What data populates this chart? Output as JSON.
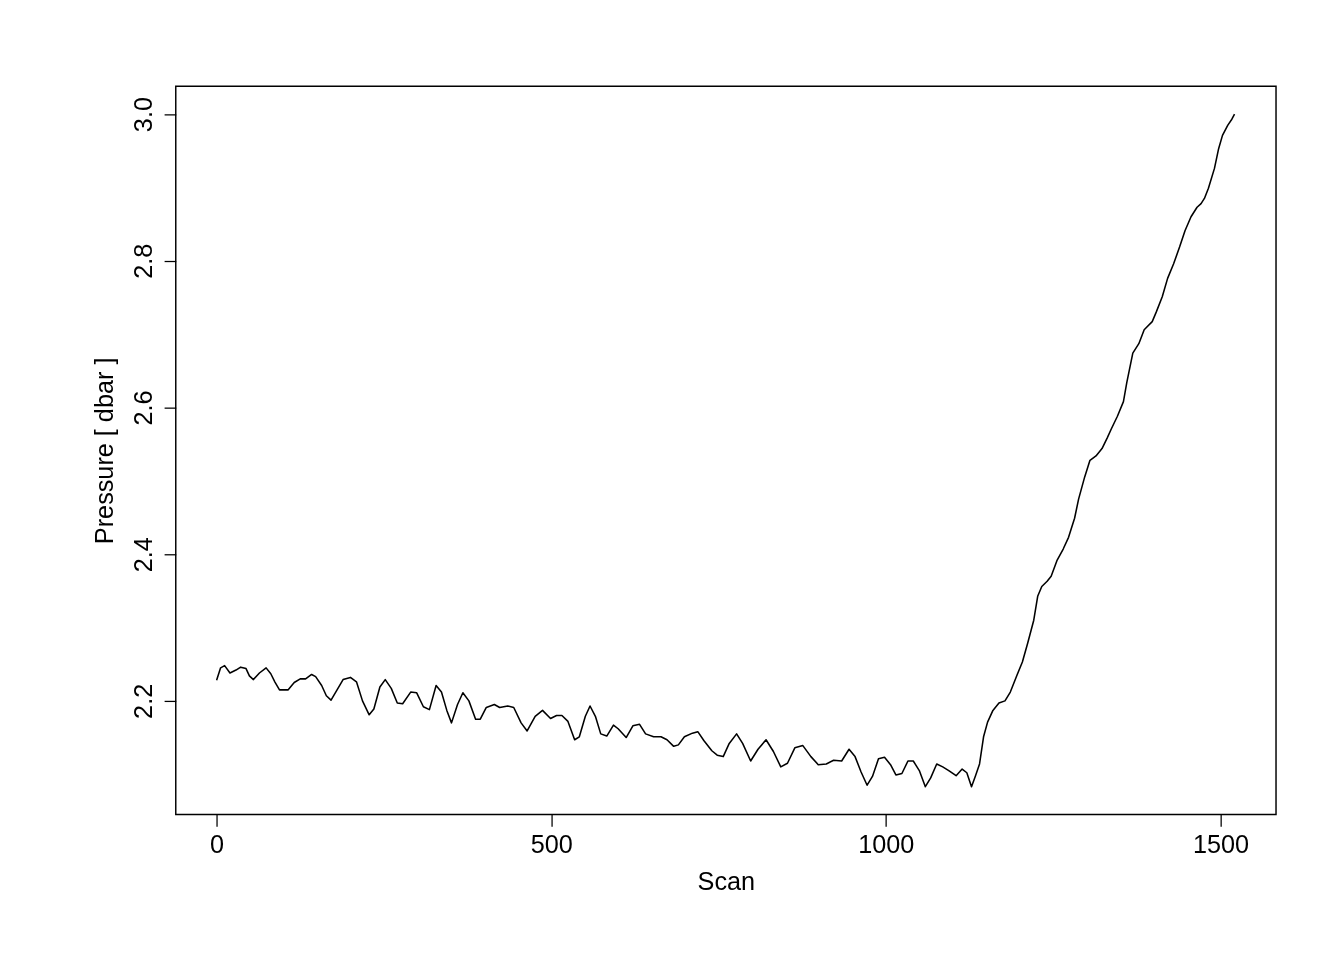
{
  "chart_data": {
    "type": "line",
    "xlabel": "Scan",
    "ylabel": "Pressure [ dbar ]",
    "xlim": [
      -61,
      1583
    ],
    "ylim": [
      2.045,
      3.038
    ],
    "xticks": [
      0,
      500,
      1000,
      1500
    ],
    "yticks": [
      {
        "value": 2.2,
        "label": "2.2"
      },
      {
        "value": 2.4,
        "label": "2.4"
      },
      {
        "value": 2.6,
        "label": "2.6"
      },
      {
        "value": 2.8,
        "label": "2.8"
      },
      {
        "value": 3.0,
        "label": "3.0"
      }
    ],
    "grid": false,
    "marker": "none",
    "line_style": "solid",
    "series": [
      {
        "color": "#000000",
        "x": [
          0,
          6,
          12,
          20,
          29,
          36,
          44,
          49,
          55,
          64,
          74,
          81,
          87,
          94,
          102,
          107,
          116,
          125,
          133,
          142,
          148,
          157,
          164,
          171,
          180,
          189,
          200,
          209,
          218,
          228,
          235,
          244,
          252,
          261,
          270,
          278,
          290,
          299,
          309,
          318,
          328,
          336,
          344,
          351,
          360,
          368,
          377,
          387,
          394,
          403,
          415,
          423,
          435,
          444,
          455,
          464,
          476,
          487,
          499,
          508,
          516,
          525,
          535,
          542,
          551,
          558,
          566,
          574,
          583,
          593,
          600,
          612,
          622,
          632,
          641,
          653,
          664,
          673,
          683,
          690,
          699,
          711,
          719,
          728,
          740,
          748,
          757,
          766,
          777,
          786,
          798,
          809,
          821,
          832,
          843,
          853,
          864,
          876,
          888,
          899,
          911,
          922,
          934,
          945,
          954,
          963,
          972,
          980,
          989,
          998,
          1007,
          1015,
          1024,
          1033,
          1041,
          1050,
          1059,
          1067,
          1076,
          1085,
          1094,
          1105,
          1114,
          1121,
          1128,
          1134,
          1140,
          1146,
          1152,
          1160,
          1169,
          1178,
          1186,
          1195,
          1204,
          1212,
          1221,
          1227,
          1233,
          1241,
          1247,
          1256,
          1265,
          1273,
          1282,
          1288,
          1297,
          1305,
          1314,
          1323,
          1331,
          1337,
          1346,
          1355,
          1360,
          1369,
          1378,
          1386,
          1398,
          1404,
          1413,
          1421,
          1430,
          1439,
          1447,
          1456,
          1465,
          1471,
          1476,
          1482,
          1491,
          1497,
          1503,
          1511,
          1517,
          1521
        ],
        "values": [
          2.228,
          2.245,
          2.248,
          2.238,
          2.242,
          2.246,
          2.244,
          2.234,
          2.229,
          2.238,
          2.245,
          2.237,
          2.226,
          2.215,
          2.215,
          2.215,
          2.225,
          2.23,
          2.23,
          2.236,
          2.233,
          2.221,
          2.207,
          2.201,
          2.215,
          2.229,
          2.232,
          2.226,
          2.2,
          2.181,
          2.189,
          2.219,
          2.229,
          2.217,
          2.197,
          2.196,
          2.212,
          2.211,
          2.192,
          2.188,
          2.221,
          2.212,
          2.187,
          2.17,
          2.195,
          2.211,
          2.2,
          2.175,
          2.175,
          2.191,
          2.195,
          2.191,
          2.193,
          2.191,
          2.17,
          2.159,
          2.179,
          2.187,
          2.176,
          2.18,
          2.18,
          2.172,
          2.147,
          2.151,
          2.179,
          2.193,
          2.179,
          2.155,
          2.152,
          2.167,
          2.162,
          2.15,
          2.166,
          2.168,
          2.155,
          2.151,
          2.151,
          2.147,
          2.138,
          2.14,
          2.151,
          2.156,
          2.158,
          2.146,
          2.132,
          2.126,
          2.124,
          2.142,
          2.155,
          2.142,
          2.118,
          2.134,
          2.147,
          2.131,
          2.11,
          2.115,
          2.136,
          2.139,
          2.124,
          2.113,
          2.114,
          2.119,
          2.118,
          2.134,
          2.124,
          2.103,
          2.085,
          2.097,
          2.121,
          2.123,
          2.113,
          2.099,
          2.101,
          2.118,
          2.118,
          2.105,
          2.083,
          2.095,
          2.114,
          2.11,
          2.105,
          2.098,
          2.107,
          2.102,
          2.083,
          2.098,
          2.114,
          2.151,
          2.171,
          2.187,
          2.197,
          2.2,
          2.212,
          2.233,
          2.253,
          2.279,
          2.31,
          2.343,
          2.356,
          2.363,
          2.37,
          2.392,
          2.407,
          2.423,
          2.449,
          2.475,
          2.505,
          2.528,
          2.534,
          2.544,
          2.559,
          2.571,
          2.588,
          2.608,
          2.634,
          2.674,
          2.687,
          2.706,
          2.717,
          2.73,
          2.751,
          2.776,
          2.796,
          2.819,
          2.841,
          2.86,
          2.873,
          2.878,
          2.885,
          2.899,
          2.926,
          2.952,
          2.971,
          2.985,
          2.993,
          3.0
        ]
      }
    ]
  }
}
